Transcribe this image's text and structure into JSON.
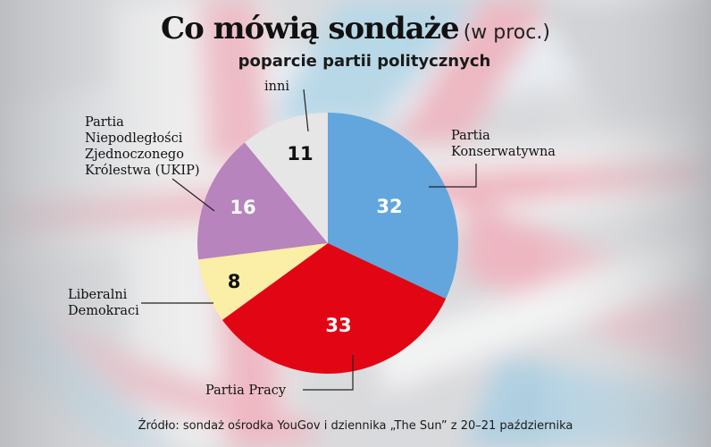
{
  "chart_data": {
    "type": "pie",
    "title": "Co mówią sondaże",
    "unit": "(w proc.)",
    "subtitle": "poparcie partii politycznych",
    "start_angle_deg": 0,
    "direction": "clockwise",
    "slices": [
      {
        "label": "Partia Konserwatywna",
        "label_lines": [
          "Partia",
          "Konserwatywna"
        ],
        "value": 32,
        "color": "#62a6dd",
        "value_color": "#ffffff"
      },
      {
        "label": "Partia Pracy",
        "label_lines": [
          "Partia Pracy"
        ],
        "value": 33,
        "color": "#e20614",
        "value_color": "#ffffff"
      },
      {
        "label": "Liberalni Demokraci",
        "label_lines": [
          "Liberalni",
          "Demokraci"
        ],
        "value": 8,
        "color": "#fbeea6",
        "value_color": "#111111"
      },
      {
        "label": "Partia Niepodległości Zjednoczonego Królestwa (UKIP)",
        "label_lines": [
          "Partia",
          "Niepodległości",
          "Zjednoczonego",
          "Królestwa (UKIP)"
        ],
        "value": 16,
        "color": "#b784bd",
        "value_color": "#ffffff"
      },
      {
        "label": "inni",
        "label_lines": [
          "inni"
        ],
        "value": 11,
        "color": "#e6e6e6",
        "value_color": "#111111"
      }
    ],
    "source": "Źródło: sondaż ośrodka YouGov i dziennika „The Sun” z 20–21 października"
  }
}
